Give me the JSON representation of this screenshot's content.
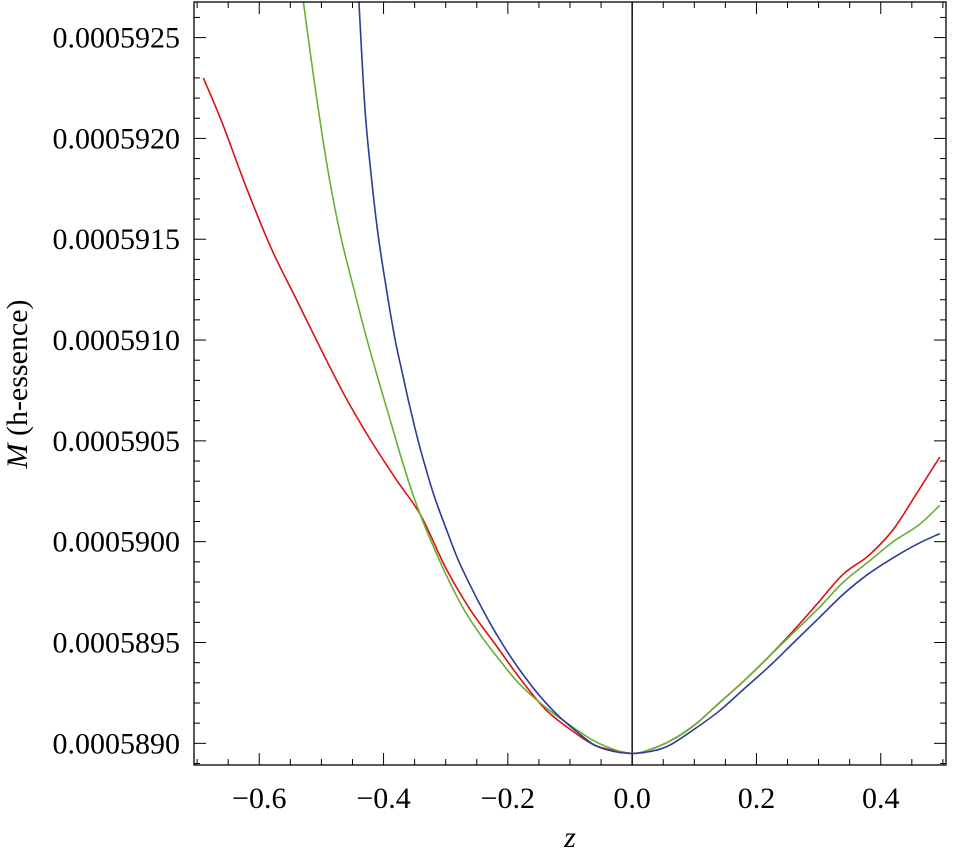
{
  "chart_data": {
    "type": "line",
    "title": "",
    "xlabel": "z",
    "ylabel_symbol": "M",
    "ylabel_text": " (h-essence)",
    "xlim": [
      -0.705,
      0.505
    ],
    "ylim": [
      0.0005888925,
      0.0005926765
    ],
    "x_ticks": [
      -0.6,
      -0.4,
      -0.2,
      0.0,
      0.2,
      0.4
    ],
    "x_tick_labels": [
      "−0.6",
      "−0.4",
      "−0.2",
      "0.0",
      "0.2",
      "0.4"
    ],
    "y_ticks": [
      0.000589,
      0.0005895,
      0.00059,
      0.0005905,
      0.000591,
      0.0005915,
      0.000592,
      0.0005925
    ],
    "y_tick_labels": [
      "0.0005890",
      "0.0005895",
      "0.0005900",
      "0.0005905",
      "0.0005910",
      "0.0005915",
      "0.0005920",
      "0.0005925"
    ],
    "x_minor_step": 0.05,
    "y_minor_step": 1e-07,
    "grid": false,
    "zero_line_x": 0.0,
    "series": [
      {
        "color": "#dd1111",
        "x": [
          -0.69,
          -0.66,
          -0.62,
          -0.58,
          -0.54,
          -0.5,
          -0.46,
          -0.42,
          -0.38,
          -0.34,
          -0.3,
          -0.26,
          -0.22,
          -0.18,
          -0.14,
          -0.1,
          -0.06,
          -0.02,
          0.0,
          0.02,
          0.06,
          0.1,
          0.14,
          0.18,
          0.22,
          0.26,
          0.3,
          0.34,
          0.38,
          0.42,
          0.46,
          0.495
        ],
        "y": [
          0.0005923,
          0.00059208,
          0.00059175,
          0.00059145,
          0.0005912,
          0.00059095,
          0.00059071,
          0.0005905,
          0.00059031,
          0.00059013,
          0.00058987,
          0.00058966,
          0.00058949,
          0.00058932,
          0.00058917,
          0.00058907,
          0.00058899,
          0.00058896,
          0.00058895,
          0.00058896,
          0.00058901,
          0.00058909,
          0.0005892,
          0.00058931,
          0.00058943,
          0.00058956,
          0.0005897,
          0.00058984,
          0.00058993,
          0.00059006,
          0.00059025,
          0.00059042
        ]
      },
      {
        "color": "#66b032",
        "x": [
          -0.53,
          -0.51,
          -0.49,
          -0.47,
          -0.45,
          -0.43,
          -0.41,
          -0.39,
          -0.37,
          -0.35,
          -0.33,
          -0.3,
          -0.27,
          -0.24,
          -0.21,
          -0.18,
          -0.14,
          -0.1,
          -0.06,
          -0.02,
          0.0,
          0.02,
          0.06,
          0.1,
          0.14,
          0.18,
          0.22,
          0.26,
          0.3,
          0.34,
          0.38,
          0.42,
          0.46,
          0.495
        ],
        "y": [
          0.0005927,
          0.00059225,
          0.00059185,
          0.00059153,
          0.00059128,
          0.00059104,
          0.00059082,
          0.00059061,
          0.0005904,
          0.00059021,
          0.00059005,
          0.00058984,
          0.00058966,
          0.00058952,
          0.0005894,
          0.00058929,
          0.00058918,
          0.00058909,
          0.00058901,
          0.00058896,
          0.00058895,
          0.00058896,
          0.00058901,
          0.00058909,
          0.0005892,
          0.00058931,
          0.00058943,
          0.00058955,
          0.00058967,
          0.0005898,
          0.0005899,
          0.00059,
          0.00059008,
          0.00059018
        ]
      },
      {
        "color": "#2b3c96",
        "x": [
          -0.44,
          -0.43,
          -0.42,
          -0.41,
          -0.4,
          -0.39,
          -0.38,
          -0.37,
          -0.36,
          -0.35,
          -0.34,
          -0.32,
          -0.3,
          -0.28,
          -0.26,
          -0.24,
          -0.22,
          -0.2,
          -0.18,
          -0.15,
          -0.12,
          -0.09,
          -0.06,
          -0.03,
          0.0,
          0.03,
          0.06,
          0.1,
          0.14,
          0.18,
          0.22,
          0.26,
          0.3,
          0.34,
          0.38,
          0.42,
          0.46,
          0.495
        ],
        "y": [
          0.0005927,
          0.00059215,
          0.00059182,
          0.00059155,
          0.00059134,
          0.00059115,
          0.00059098,
          0.00059084,
          0.0005907,
          0.00059057,
          0.00059045,
          0.00059024,
          0.00059007,
          0.00058991,
          0.00058978,
          0.00058966,
          0.00058955,
          0.00058945,
          0.00058936,
          0.00058924,
          0.00058914,
          0.00058906,
          0.00058899,
          0.00058896,
          0.00058895,
          0.00058896,
          0.00058899,
          0.00058907,
          0.00058916,
          0.00058927,
          0.00058938,
          0.0005895,
          0.00058962,
          0.00058974,
          0.00058984,
          0.00058992,
          0.00058999,
          0.00059004
        ]
      }
    ]
  }
}
